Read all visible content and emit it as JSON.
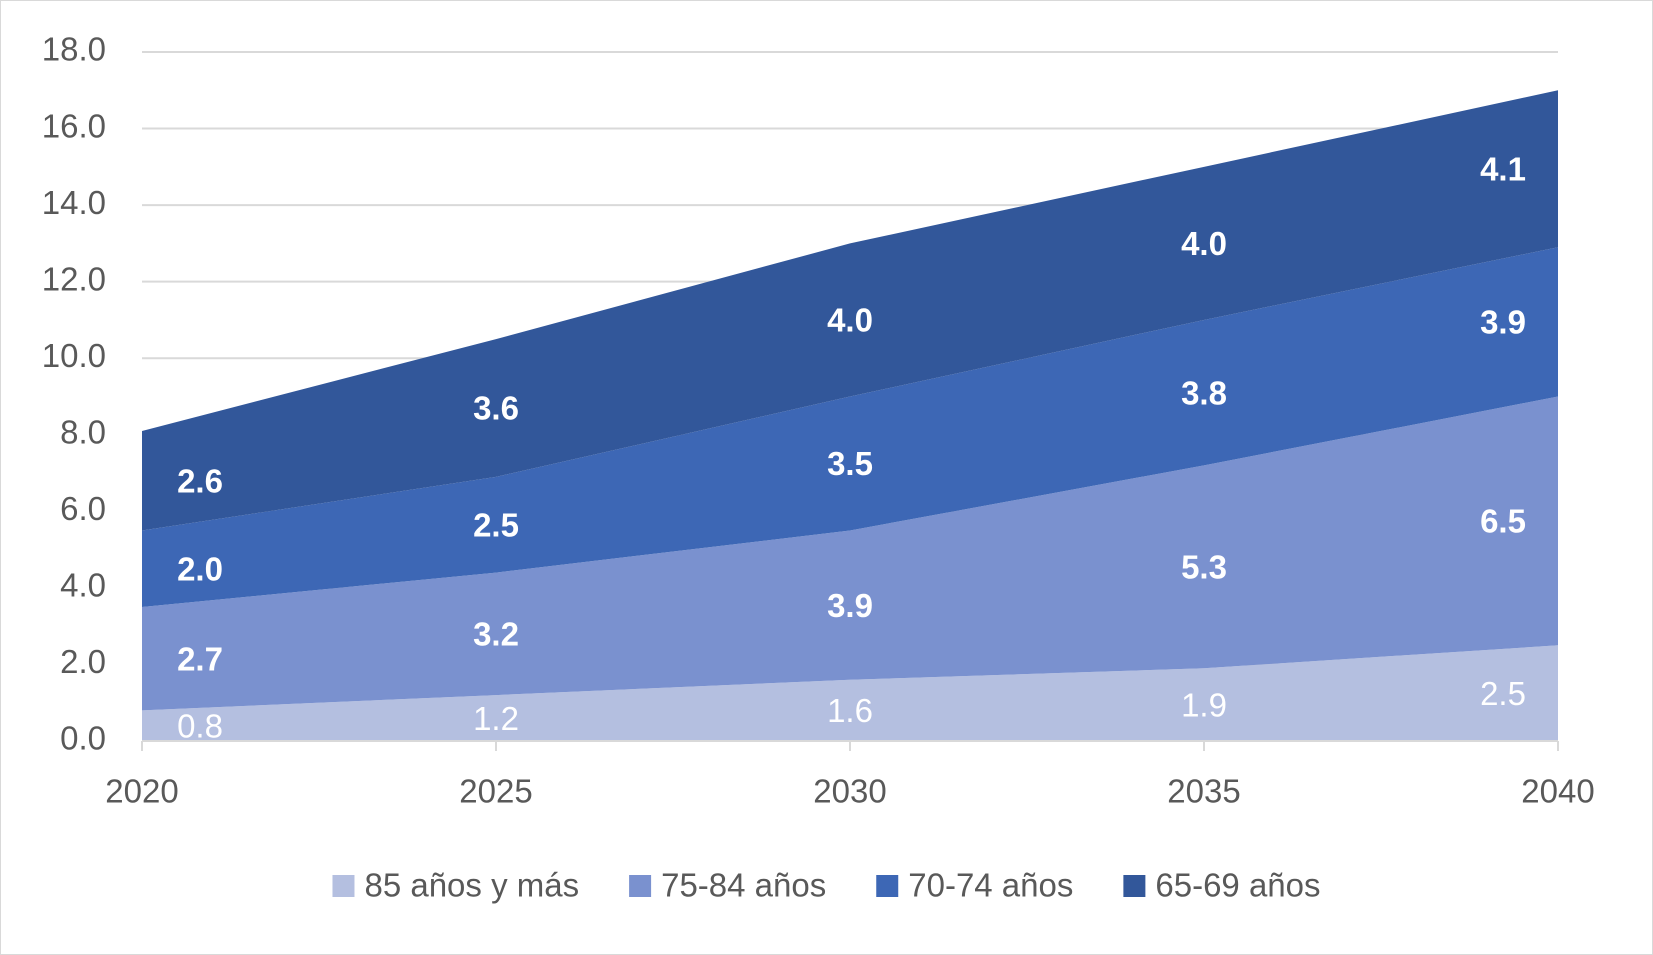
{
  "chart_data": {
    "type": "stacked-area",
    "categories": [
      "2020",
      "2025",
      "2030",
      "2035",
      "2040"
    ],
    "series": [
      {
        "name": "85 años y más",
        "color": "#b4bfe0",
        "values": [
          0.8,
          1.2,
          1.6,
          1.9,
          2.5
        ],
        "value_labels": [
          "0.8",
          "1.2",
          "1.6",
          "1.9",
          "2.5"
        ]
      },
      {
        "name": "75-84 años",
        "color": "#7a91cf",
        "values": [
          2.7,
          3.2,
          3.9,
          5.3,
          6.5
        ],
        "value_labels": [
          "2.7",
          "3.2",
          "3.9",
          "5.3",
          "6.5"
        ]
      },
      {
        "name": "70-74 años",
        "color": "#3d67b5",
        "values": [
          2.0,
          2.5,
          3.5,
          3.8,
          3.9
        ],
        "value_labels": [
          "2.0",
          "2.5",
          "3.5",
          "3.8",
          "3.9"
        ]
      },
      {
        "name": "65-69 años",
        "color": "#32579a",
        "values": [
          2.6,
          3.6,
          4.0,
          4.0,
          4.1
        ],
        "value_labels": [
          "2.6",
          "3.6",
          "4.0",
          "4.0",
          "4.1"
        ]
      }
    ],
    "ylim": [
      0,
      18
    ],
    "yticks": [
      {
        "value": 0,
        "label": "0.0"
      },
      {
        "value": 2,
        "label": "2.0"
      },
      {
        "value": 4,
        "label": "4.0"
      },
      {
        "value": 6,
        "label": "6.0"
      },
      {
        "value": 8,
        "label": "8.0"
      },
      {
        "value": 10,
        "label": "10.0"
      },
      {
        "value": 12,
        "label": "12.0"
      },
      {
        "value": 14,
        "label": "14.0"
      },
      {
        "value": 16,
        "label": "16.0"
      },
      {
        "value": 18,
        "label": "18.0"
      }
    ],
    "grid": true,
    "legend": "bottom"
  }
}
